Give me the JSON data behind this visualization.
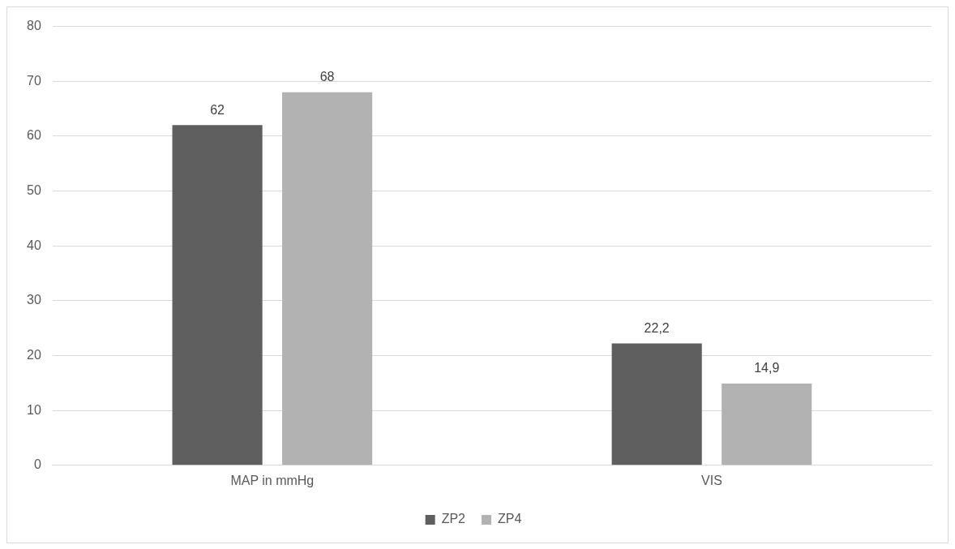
{
  "chart_data": {
    "type": "bar",
    "categories": [
      "MAP in mmHg",
      "VIS"
    ],
    "series": [
      {
        "name": "ZP2",
        "color": "#5f5f5f",
        "values": [
          62,
          22.2
        ],
        "value_labels": [
          "62",
          "22,2"
        ]
      },
      {
        "name": "ZP4",
        "color": "#b2b2b2",
        "values": [
          68,
          14.9
        ],
        "value_labels": [
          "68",
          "14,9"
        ]
      }
    ],
    "ylim": [
      0,
      80
    ],
    "yticks": [
      0,
      10,
      20,
      30,
      40,
      50,
      60,
      70,
      80
    ],
    "grid": "y",
    "legend": "bottom"
  }
}
